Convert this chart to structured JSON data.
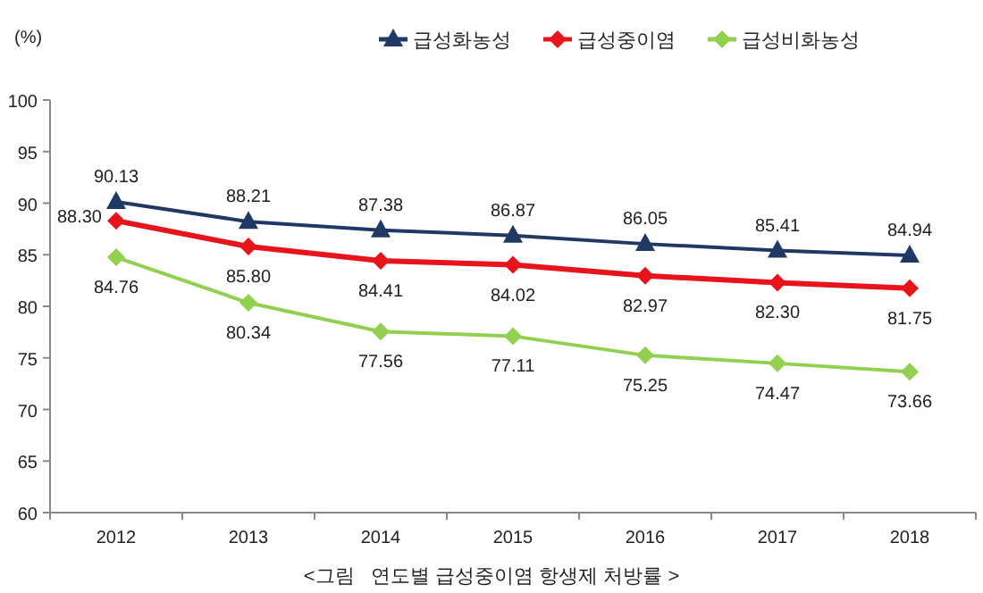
{
  "chart_data": {
    "type": "line",
    "ylabel": "(%)",
    "categories": [
      "2012",
      "2013",
      "2014",
      "2015",
      "2016",
      "2017",
      "2018"
    ],
    "series": [
      {
        "name": "급성화농성",
        "color": "#1f3864",
        "marker": "triangle",
        "values": [
          90.13,
          88.21,
          87.38,
          86.87,
          86.05,
          85.41,
          84.94
        ],
        "value_labels": [
          "90.13",
          "88.21",
          "87.38",
          "86.87",
          "86.05",
          "85.41",
          "84.94"
        ]
      },
      {
        "name": "급성중이염",
        "color": "#e8141c",
        "marker": "diamond",
        "values": [
          88.3,
          85.8,
          84.41,
          84.02,
          82.97,
          82.3,
          81.75
        ],
        "value_labels": [
          "88.30",
          "85.80",
          "84.41",
          "84.02",
          "82.97",
          "82.30",
          "81.75"
        ]
      },
      {
        "name": "급성비화농성",
        "color": "#92d050",
        "marker": "diamond",
        "values": [
          84.76,
          80.34,
          77.56,
          77.11,
          75.25,
          74.47,
          73.66
        ],
        "value_labels": [
          "84.76",
          "80.34",
          "77.56",
          "77.11",
          "75.25",
          "74.47",
          "73.66"
        ]
      }
    ],
    "ylim": [
      60,
      100
    ],
    "yticks": [
      60,
      65,
      70,
      75,
      80,
      85,
      90,
      95,
      100
    ],
    "legend": "top",
    "grid": false,
    "annotations": [
      "<그림   연도별 급성중이염 항생제 처방률 >"
    ]
  }
}
